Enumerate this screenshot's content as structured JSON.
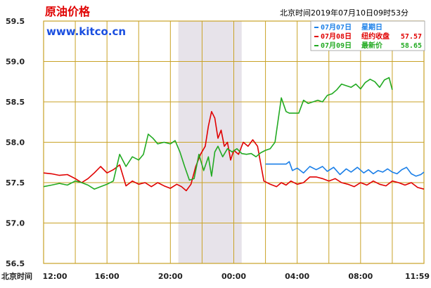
{
  "header": {
    "title": "原油价格",
    "site": "www.kitco.cn",
    "timestamp": "北京时间2019年07月10日09时53分"
  },
  "legend": [
    {
      "date": "07月07日",
      "label": "星期日",
      "value": "",
      "color": "#1a7fe8"
    },
    {
      "date": "07月08日",
      "label": "纽约收盘",
      "value": "57.57",
      "color": "#e00000"
    },
    {
      "date": "07月09日",
      "label": "最新价",
      "value": "58.65",
      "color": "#22aa22"
    }
  ],
  "chart_data": {
    "type": "line",
    "title": "原油价格",
    "xlabel": "北京时间",
    "x_tick_labels": [
      "12:00",
      "16:00",
      "20:00",
      "00:00",
      "04:00",
      "08:00",
      "11:59"
    ],
    "y_ticks": [
      59.5,
      59.0,
      58.5,
      58.0,
      57.5,
      57.0,
      56.5
    ],
    "ylim": [
      56.5,
      59.5
    ],
    "x_unit": "hours since 12:00 (24h session)",
    "xlim": [
      0,
      24
    ],
    "shaded_range_hours": [
      8.5,
      12.5
    ],
    "grid": true,
    "colors": {
      "grid": "#c9a227",
      "shade": "#e7e3ea",
      "axis": "#c9a227"
    },
    "series": [
      {
        "name": "07月07日",
        "color": "#1a7fe8",
        "x": [
          14.0,
          15.3,
          15.5,
          15.7,
          16.0,
          16.4,
          16.8,
          17.2,
          17.6,
          17.9,
          18.3,
          18.7,
          19.1,
          19.4,
          19.8,
          20.2,
          20.5,
          20.8,
          21.1,
          21.4,
          21.7,
          22.0,
          22.3,
          22.6,
          22.9,
          23.2,
          23.5,
          23.8,
          24.0
        ],
        "y": [
          57.73,
          57.73,
          57.76,
          57.65,
          57.68,
          57.62,
          57.7,
          57.66,
          57.7,
          57.64,
          57.69,
          57.6,
          57.67,
          57.63,
          57.69,
          57.62,
          57.66,
          57.61,
          57.65,
          57.63,
          57.67,
          57.63,
          57.61,
          57.66,
          57.69,
          57.61,
          57.58,
          57.6,
          57.63
        ]
      },
      {
        "name": "07月08日",
        "color": "#e00000",
        "x": [
          0.0,
          0.5,
          1.0,
          1.5,
          2.0,
          2.4,
          2.8,
          3.2,
          3.6,
          4.0,
          4.4,
          4.8,
          5.2,
          5.6,
          6.0,
          6.4,
          6.8,
          7.2,
          7.6,
          8.0,
          8.4,
          8.7,
          9.0,
          9.3,
          9.6,
          9.9,
          10.2,
          10.4,
          10.6,
          10.8,
          11.0,
          11.2,
          11.4,
          11.6,
          11.8,
          12.0,
          12.3,
          12.6,
          12.9,
          13.2,
          13.5,
          13.9,
          14.3,
          14.7,
          15.0,
          15.3,
          15.6,
          16.0,
          16.4,
          16.8,
          17.2,
          17.6,
          18.0,
          18.4,
          18.8,
          19.2,
          19.6,
          20.0,
          20.4,
          20.8,
          21.2,
          21.6,
          22.0,
          22.4,
          22.8,
          23.2,
          23.6,
          24.0
        ],
        "y": [
          57.62,
          57.61,
          57.59,
          57.6,
          57.55,
          57.5,
          57.55,
          57.62,
          57.7,
          57.62,
          57.66,
          57.72,
          57.46,
          57.52,
          57.48,
          57.5,
          57.45,
          57.5,
          57.46,
          57.43,
          57.48,
          57.45,
          57.4,
          57.48,
          57.7,
          57.85,
          57.95,
          58.2,
          58.38,
          58.3,
          58.05,
          58.15,
          57.95,
          58.0,
          57.78,
          57.9,
          57.85,
          58.0,
          57.95,
          58.03,
          57.95,
          57.52,
          57.48,
          57.45,
          57.5,
          57.47,
          57.52,
          57.48,
          57.5,
          57.57,
          57.57,
          57.55,
          57.52,
          57.55,
          57.5,
          57.48,
          57.45,
          57.5,
          57.47,
          57.52,
          57.48,
          57.46,
          57.52,
          57.5,
          57.47,
          57.5,
          57.44,
          57.42
        ]
      },
      {
        "name": "07月09日",
        "color": "#22aa22",
        "x": [
          0.0,
          0.5,
          1.0,
          1.5,
          2.0,
          2.4,
          2.8,
          3.2,
          3.6,
          4.0,
          4.4,
          4.8,
          5.2,
          5.6,
          6.0,
          6.3,
          6.6,
          6.9,
          7.2,
          7.6,
          8.0,
          8.3,
          8.6,
          8.9,
          9.2,
          9.5,
          9.8,
          10.1,
          10.4,
          10.6,
          10.8,
          11.0,
          11.3,
          11.6,
          11.9,
          12.2,
          12.5,
          12.8,
          13.1,
          13.4,
          13.7,
          14.0,
          14.3,
          14.6,
          15.0,
          15.3,
          15.5,
          15.8,
          16.1,
          16.4,
          16.7,
          17.0,
          17.3,
          17.6,
          17.9,
          18.2,
          18.5,
          18.8,
          19.1,
          19.4,
          19.7,
          20.0,
          20.3,
          20.6,
          20.9,
          21.2,
          21.5,
          21.8,
          22.0
        ],
        "y": [
          57.45,
          57.47,
          57.49,
          57.47,
          57.52,
          57.5,
          57.47,
          57.42,
          57.45,
          57.48,
          57.52,
          57.85,
          57.7,
          57.82,
          57.78,
          57.85,
          58.1,
          58.05,
          57.98,
          58.0,
          57.98,
          58.02,
          57.88,
          57.7,
          57.53,
          57.55,
          57.85,
          57.65,
          57.82,
          57.58,
          57.88,
          57.95,
          57.82,
          57.92,
          57.88,
          57.92,
          57.86,
          57.85,
          57.86,
          57.82,
          57.87,
          57.9,
          57.92,
          58.0,
          58.55,
          58.38,
          58.36,
          58.36,
          58.36,
          58.52,
          58.48,
          58.5,
          58.52,
          58.5,
          58.58,
          58.6,
          58.65,
          58.72,
          58.7,
          58.68,
          58.72,
          58.66,
          58.74,
          58.78,
          58.75,
          58.68,
          58.77,
          58.8,
          58.65
        ]
      }
    ]
  }
}
